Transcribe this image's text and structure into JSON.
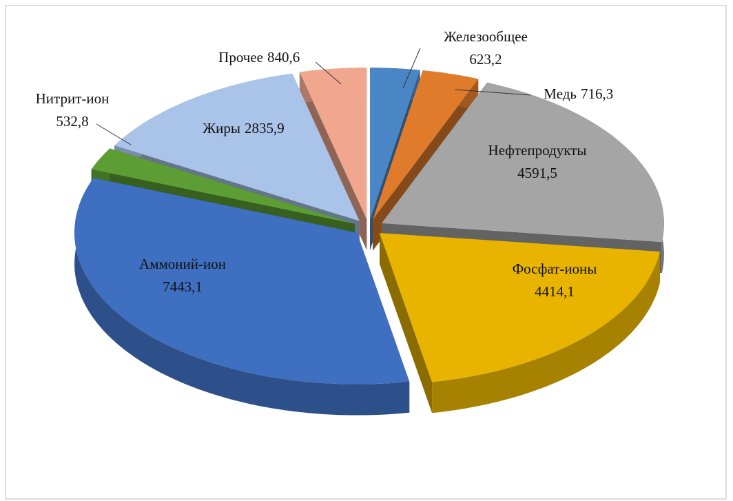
{
  "chart_data": {
    "type": "pie3d",
    "categories": [
      "Железообщее",
      "Медь",
      "Нефтепродукты",
      "Фосфат-ионы",
      "Аммоний-ион",
      "Нитрит-ион",
      "Жиры",
      "Прочее"
    ],
    "values": [
      623.2,
      716.3,
      4591.5,
      4414.1,
      7443.1,
      532.8,
      2835.9,
      840.6
    ],
    "value_labels": [
      "623,2",
      "716,3",
      "4591,5",
      "4414,1",
      "7443,1",
      "532,8",
      "2835,9",
      "840,6"
    ],
    "colors": [
      "#4a86c5",
      "#e07b2c",
      "#a5a5a5",
      "#e8b400",
      "#3f6fc0",
      "#5c9e33",
      "#a9c4e8",
      "#f0a78e"
    ],
    "legend": false
  }
}
